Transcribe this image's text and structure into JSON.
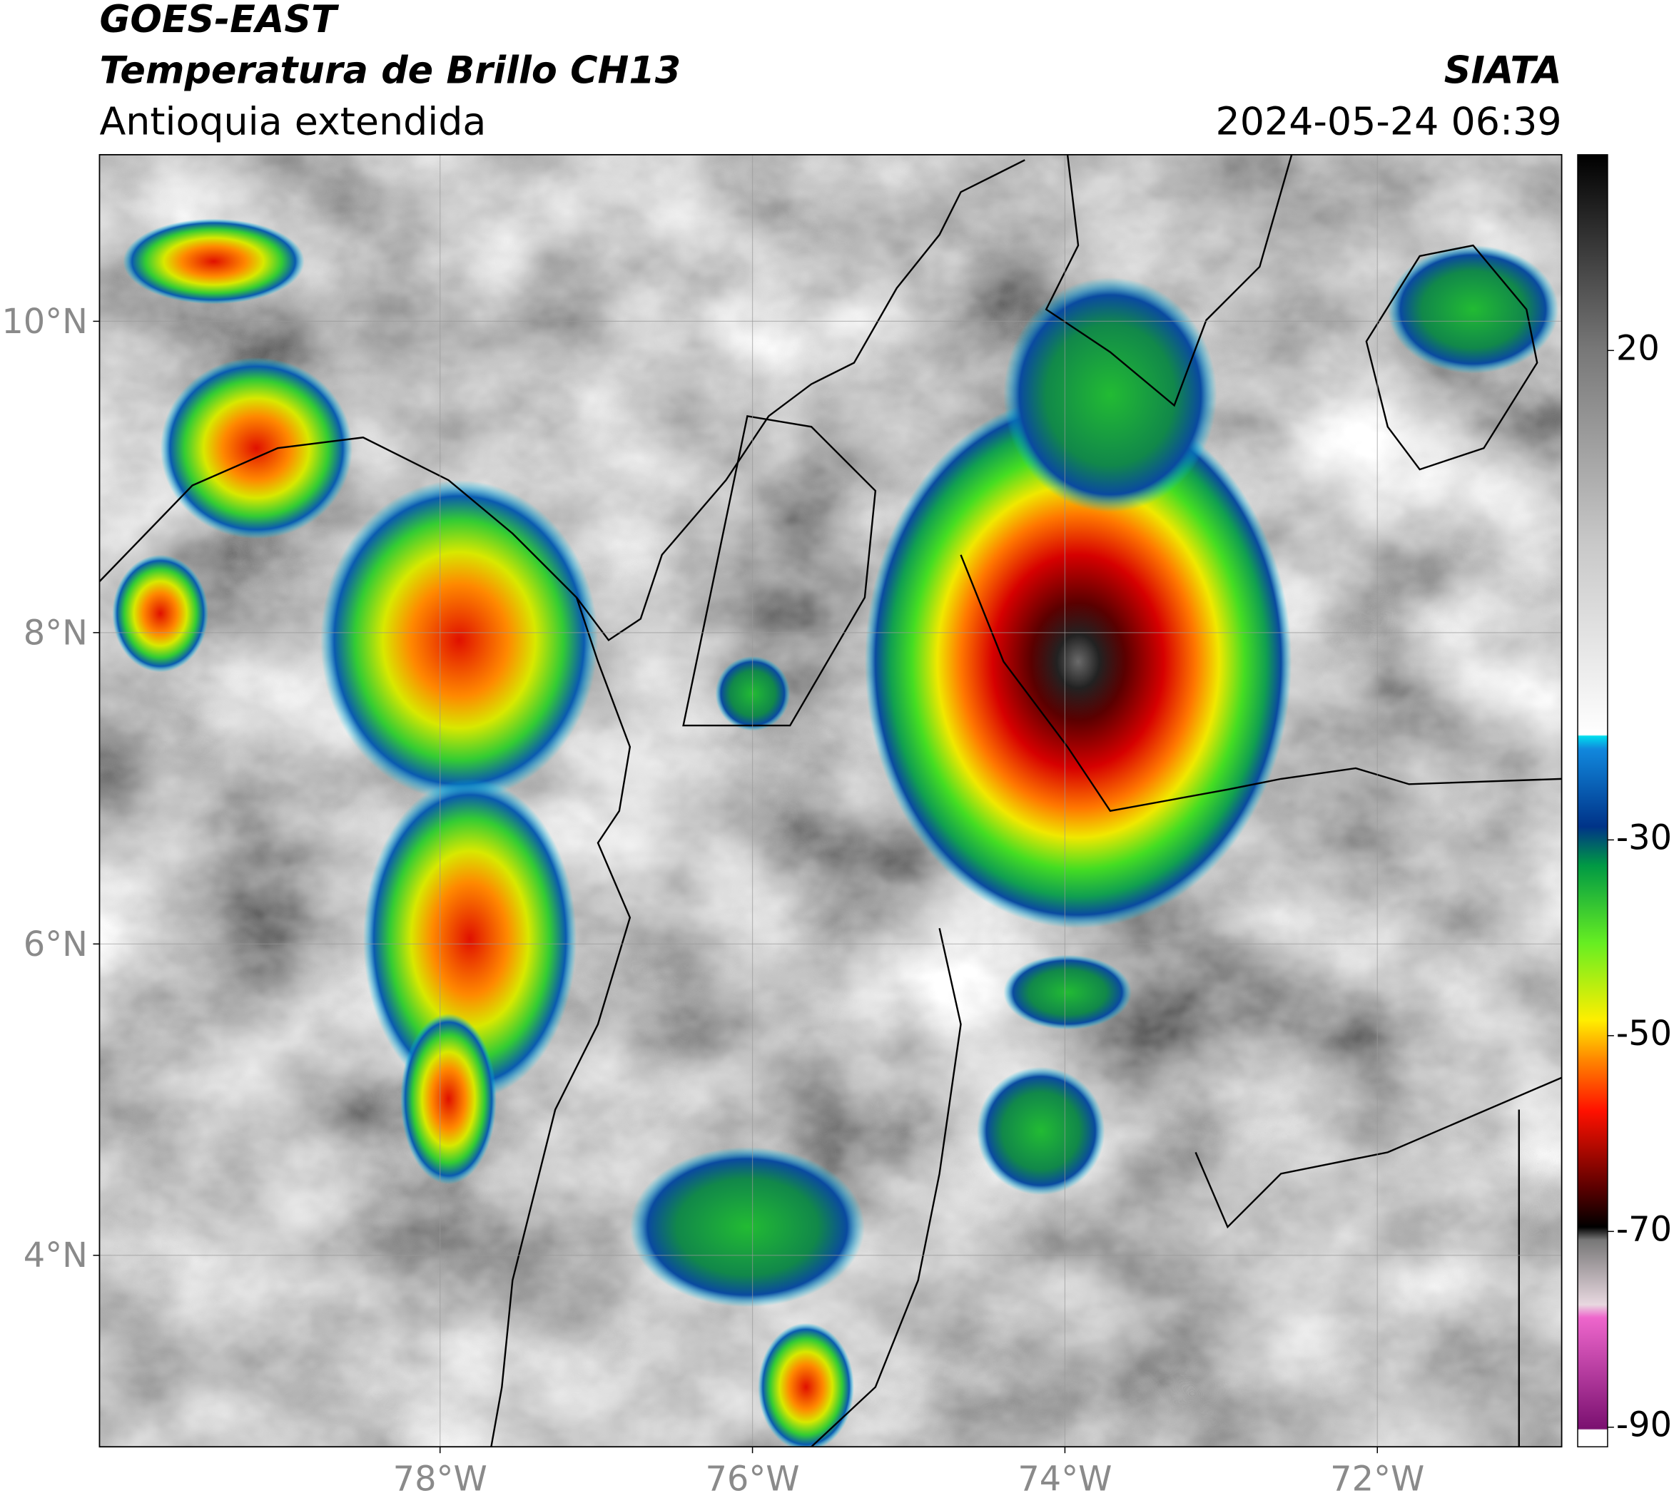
{
  "header": {
    "satellite": "GOES-EAST",
    "product": "Temperatura de Brillo CH13",
    "region": "Antioquia extendida",
    "agency": "SIATA",
    "datetime": "2024-05-24 06:39"
  },
  "map": {
    "xlim": [
      -80.18,
      -70.82
    ],
    "ylim": [
      2.77,
      11.07
    ],
    "xticks": [
      {
        "value": -78,
        "label": "78°W"
      },
      {
        "value": -76,
        "label": "76°W"
      },
      {
        "value": -74,
        "label": "74°W"
      },
      {
        "value": -72,
        "label": "72°W"
      }
    ],
    "yticks": [
      {
        "value": 10,
        "label": "10°N"
      },
      {
        "value": 8,
        "label": "8°N"
      },
      {
        "value": 6,
        "label": "6°N"
      },
      {
        "value": 4,
        "label": "4°N"
      }
    ]
  },
  "colorbar": {
    "lim": [
      -92,
      40
    ],
    "ticks": [
      20,
      -30,
      -50,
      -70,
      -90
    ]
  }
}
